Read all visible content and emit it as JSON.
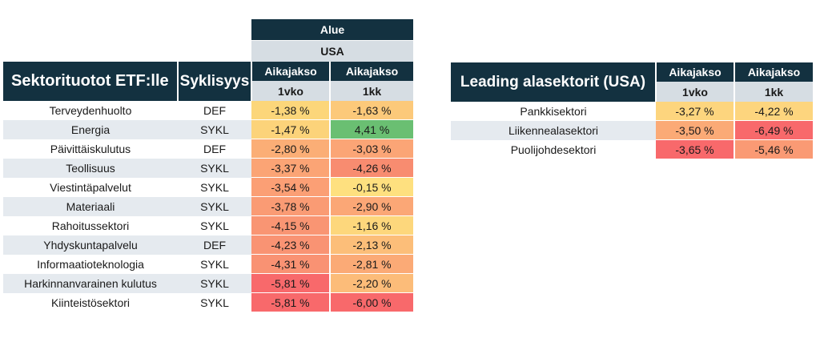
{
  "left_table": {
    "title": "Sektorituotot ETF:lle",
    "cyclicality_header": "Syklisyys",
    "region_header": "Alue",
    "region_value": "USA",
    "period_header": "Aikajakso",
    "periods": [
      "1vko",
      "1kk"
    ],
    "rows": [
      {
        "sector": "Terveydenhuolto",
        "cycle": "DEF",
        "w1": "-1,38 %",
        "m1": "-1,63 %",
        "w1_color": "#fcd67a",
        "m1_color": "#fcc97a"
      },
      {
        "sector": "Energia",
        "cycle": "SYKL",
        "w1": "-1,47 %",
        "m1": "4,41 %",
        "w1_color": "#fcd37a",
        "m1_color": "#6abf72"
      },
      {
        "sector": "Päivittäiskulutus",
        "cycle": "DEF",
        "w1": "-2,80 %",
        "m1": "-3,03 %",
        "w1_color": "#fbae76",
        "m1_color": "#fba576"
      },
      {
        "sector": "Teollisuus",
        "cycle": "SYKL",
        "w1": "-3,37 %",
        "m1": "-4,26 %",
        "w1_color": "#fba475",
        "m1_color": "#f88c70"
      },
      {
        "sector": "Viestintäpalvelut",
        "cycle": "SYKL",
        "w1": "-3,54 %",
        "m1": "-0,15 %",
        "w1_color": "#fb9f75",
        "m1_color": "#fee07f"
      },
      {
        "sector": "Materiaali",
        "cycle": "SYKL",
        "w1": "-3,78 %",
        "m1": "-2,90 %",
        "w1_color": "#fa9b74",
        "m1_color": "#fba776"
      },
      {
        "sector": "Rahoitussektori",
        "cycle": "SYKL",
        "w1": "-4,15 %",
        "m1": "-1,16 %",
        "w1_color": "#f99573",
        "m1_color": "#fdd77c"
      },
      {
        "sector": "Yhdyskuntapalvelu",
        "cycle": "DEF",
        "w1": "-4,23 %",
        "m1": "-2,13 %",
        "w1_color": "#f99373",
        "m1_color": "#fcbe79"
      },
      {
        "sector": "Informaatioteknologia",
        "cycle": "SYKL",
        "w1": "-4,31 %",
        "m1": "-2,81 %",
        "w1_color": "#f99273",
        "m1_color": "#fbaa76"
      },
      {
        "sector": "Harkinnanvarainen kulutus",
        "cycle": "SYKL",
        "w1": "-5,81 %",
        "m1": "-2,20 %",
        "w1_color": "#f8696b",
        "m1_color": "#fcbc79"
      },
      {
        "sector": "Kiinteistösektori",
        "cycle": "SYKL",
        "w1": "-5,81 %",
        "m1": "-6,00 %",
        "w1_color": "#f8696b",
        "m1_color": "#f8696b"
      }
    ]
  },
  "right_table": {
    "title": "Leading alasektorit (USA)",
    "period_header": "Aikajakso",
    "periods": [
      "1vko",
      "1kk"
    ],
    "rows": [
      {
        "sector": "Pankkisektori",
        "w1": "-3,27 %",
        "m1": "-4,22 %",
        "w1_color": "#fdd57e",
        "m1_color": "#fdd57e"
      },
      {
        "sector": "Liikennealasektori",
        "w1": "-3,50 %",
        "m1": "-6,49 %",
        "w1_color": "#fbaa76",
        "m1_color": "#f8696b"
      },
      {
        "sector": "Puolijohdesektori",
        "w1": "-3,65 %",
        "m1": "-5,46 %",
        "w1_color": "#f8696b",
        "m1_color": "#fa9a74"
      }
    ]
  }
}
